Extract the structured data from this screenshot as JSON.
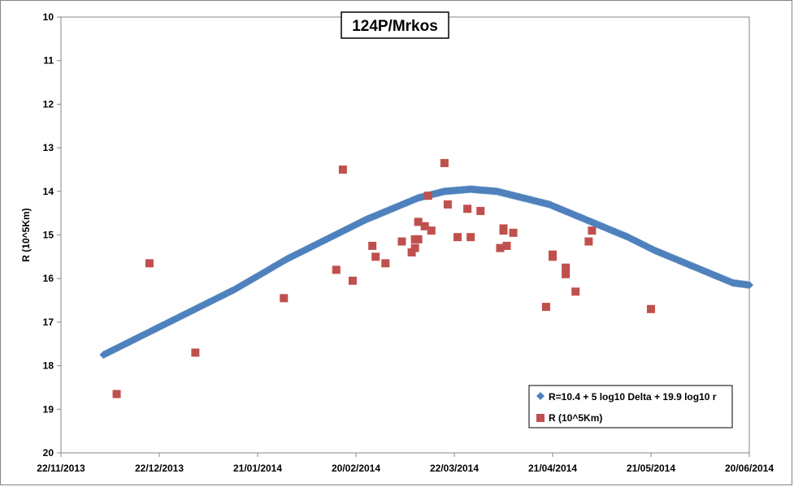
{
  "chart_data": {
    "type": "scatter",
    "title": "124P/Mrkos",
    "xlabel": "",
    "ylabel": "R (10^5Km)",
    "ylim": [
      10,
      20
    ],
    "y_inverted": true,
    "y_ticks": [
      10,
      11,
      12,
      13,
      14,
      15,
      16,
      17,
      18,
      19,
      20
    ],
    "x_ticks": [
      "22/11/2013",
      "22/12/2013",
      "21/01/2014",
      "20/02/2014",
      "22/03/2014",
      "21/04/2014",
      "21/05/2014",
      "20/06/2014"
    ],
    "xlim": [
      "2013-11-22",
      "2014-06-20"
    ],
    "grid": false,
    "legend_position": "bottom-right",
    "series": [
      {
        "name": "R=10.4 + 5 log10 Delta + 19.9 log10 r",
        "marker": "diamond",
        "color": "#4f81bd",
        "points": [
          [
            "2013-12-05",
            17.75
          ],
          [
            "2013-12-13",
            17.45
          ],
          [
            "2013-12-21",
            17.15
          ],
          [
            "2013-12-29",
            16.85
          ],
          [
            "2014-01-06",
            16.55
          ],
          [
            "2014-01-14",
            16.25
          ],
          [
            "2014-01-22",
            15.9
          ],
          [
            "2014-01-30",
            15.55
          ],
          [
            "2014-02-07",
            15.25
          ],
          [
            "2014-02-15",
            14.95
          ],
          [
            "2014-02-23",
            14.65
          ],
          [
            "2014-03-03",
            14.4
          ],
          [
            "2014-03-11",
            14.15
          ],
          [
            "2014-03-19",
            14.0
          ],
          [
            "2014-03-27",
            13.95
          ],
          [
            "2014-04-04",
            14.0
          ],
          [
            "2014-04-12",
            14.15
          ],
          [
            "2014-04-20",
            14.3
          ],
          [
            "2014-04-28",
            14.55
          ],
          [
            "2014-05-06",
            14.8
          ],
          [
            "2014-05-14",
            15.05
          ],
          [
            "2014-05-22",
            15.35
          ],
          [
            "2014-05-30",
            15.6
          ],
          [
            "2014-06-07",
            15.85
          ],
          [
            "2014-06-15",
            16.1
          ],
          [
            "2014-06-20",
            16.15
          ]
        ]
      },
      {
        "name": "R (10^5Km)",
        "marker": "square",
        "color": "#c0504d",
        "points": [
          [
            "2013-12-09",
            18.65
          ],
          [
            "2013-12-19",
            15.65
          ],
          [
            "2014-01-02",
            17.7
          ],
          [
            "2014-01-29",
            16.45
          ],
          [
            "2014-02-14",
            15.8
          ],
          [
            "2014-02-16",
            13.5
          ],
          [
            "2014-02-19",
            16.05
          ],
          [
            "2014-02-25",
            15.25
          ],
          [
            "2014-02-26",
            15.5
          ],
          [
            "2014-03-01",
            15.65
          ],
          [
            "2014-03-06",
            15.15
          ],
          [
            "2014-03-09",
            15.4
          ],
          [
            "2014-03-10",
            15.3
          ],
          [
            "2014-03-10",
            15.1
          ],
          [
            "2014-03-11",
            15.1
          ],
          [
            "2014-03-11",
            14.7
          ],
          [
            "2014-03-13",
            14.8
          ],
          [
            "2014-03-14",
            14.1
          ],
          [
            "2014-03-15",
            14.9
          ],
          [
            "2014-03-19",
            13.35
          ],
          [
            "2014-03-20",
            14.3
          ],
          [
            "2014-03-23",
            15.05
          ],
          [
            "2014-03-26",
            14.4
          ],
          [
            "2014-03-27",
            15.05
          ],
          [
            "2014-03-30",
            14.45
          ],
          [
            "2014-04-05",
            15.3
          ],
          [
            "2014-04-06",
            14.85
          ],
          [
            "2014-04-06",
            14.9
          ],
          [
            "2014-04-07",
            15.25
          ],
          [
            "2014-04-09",
            14.95
          ],
          [
            "2014-04-19",
            16.65
          ],
          [
            "2014-04-21",
            15.45
          ],
          [
            "2014-04-21",
            15.5
          ],
          [
            "2014-04-25",
            15.9
          ],
          [
            "2014-04-25",
            15.75
          ],
          [
            "2014-04-28",
            16.3
          ],
          [
            "2014-05-02",
            15.15
          ],
          [
            "2014-05-03",
            14.9
          ],
          [
            "2014-05-21",
            16.7
          ]
        ]
      }
    ]
  }
}
